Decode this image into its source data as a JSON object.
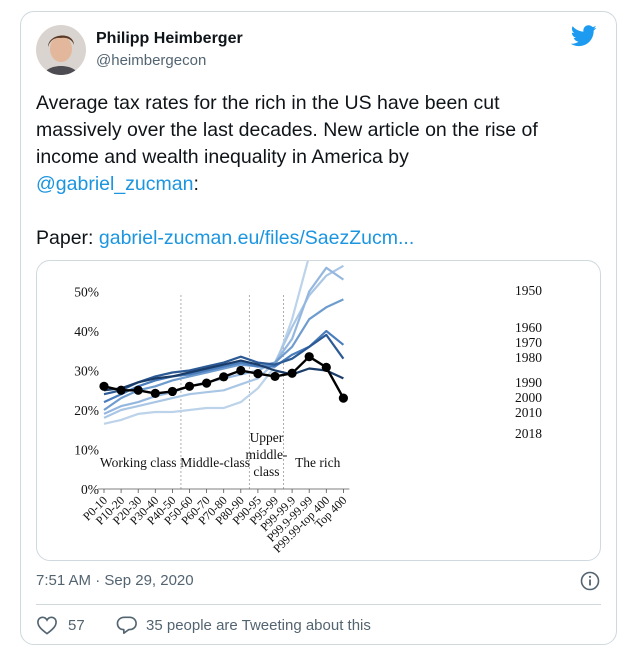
{
  "tweet": {
    "author_name": "Philipp Heimberger",
    "author_handle": "@heimbergecon",
    "text_lines": [
      "Average tax rates for the rich in the US have been cut",
      "massively over the last decades. New article on the rise of",
      "income and wealth inequality in America by"
    ],
    "mention": "@gabriel_zucman",
    "mention_suffix": ":",
    "paper_label": "Paper: ",
    "paper_link": "gabriel-zucman.eu/files/SaezZucm...",
    "timestamp": "7:51 AM · Sep 29, 2020",
    "likes": "57",
    "tweeting": "35 people are Tweeting about this"
  },
  "icons": {
    "brand": "twitter-bird-icon",
    "info": "info-icon",
    "like": "heart-icon",
    "reply": "reply-icon"
  },
  "colors": {
    "link": "#1b95e0",
    "brand": "#1d9bf0",
    "muted": "#536471"
  },
  "chart_data": {
    "type": "line",
    "categories": [
      "P0-10",
      "P10-20",
      "P20-30",
      "P30-40",
      "P40-50",
      "P50-60",
      "P60-70",
      "P70-80",
      "P80-90",
      "P90-95",
      "P95-99",
      "P99-99.9",
      "P99.9-99.99",
      "P99.99-top 400",
      "Top 400"
    ],
    "ylim": [
      0,
      70
    ],
    "yticks": [
      0,
      10,
      20,
      30,
      40,
      50,
      60,
      70
    ],
    "ytick_suffix": "%",
    "groups": [
      {
        "label": "Working class"
      },
      {
        "label": "Middle-class"
      },
      {
        "label": "Upper middle-class",
        "lines": [
          "Upper",
          "middle-",
          "class"
        ]
      },
      {
        "label": "The rich"
      }
    ],
    "series": [
      {
        "name": "1950",
        "color": "#bcd3ea",
        "values": [
          16.5,
          17.5,
          19,
          19.5,
          19.5,
          20,
          20.5,
          20.5,
          22,
          25.5,
          31,
          43,
          59,
          68,
          70
        ]
      },
      {
        "name": "1960",
        "color": "#a9c6e5",
        "values": [
          18,
          20,
          21,
          22,
          23,
          24,
          24.5,
          25,
          26.5,
          28,
          32,
          41,
          49,
          54,
          56.5
        ]
      },
      {
        "name": "1970",
        "color": "#94b7df",
        "values": [
          19,
          21,
          22,
          23.5,
          24.5,
          26,
          27,
          28,
          29,
          30,
          32,
          38,
          50,
          56,
          53
        ]
      },
      {
        "name": "1980",
        "color": "#6f9ccf",
        "values": [
          20,
          23,
          25,
          26,
          27.5,
          28.5,
          29.5,
          30.5,
          31.5,
          31,
          32,
          36,
          43,
          46,
          48
        ]
      },
      {
        "name": "1990",
        "color": "#4a7dbd",
        "values": [
          22,
          24,
          26,
          27.5,
          28.5,
          29,
          30,
          31,
          32,
          31,
          31,
          34,
          36,
          40,
          36.5
        ]
      },
      {
        "name": "2000",
        "color": "#2c5a95",
        "values": [
          24,
          25,
          27,
          28.5,
          29.5,
          30,
          31,
          32,
          33.5,
          32,
          31.5,
          33,
          36,
          39,
          33
        ]
      },
      {
        "name": "2010",
        "color": "#1a3c68",
        "values": [
          25,
          25.5,
          27,
          28,
          28.5,
          29.5,
          30.5,
          31.5,
          32.5,
          31.5,
          30,
          29,
          30.5,
          30,
          28
        ]
      },
      {
        "name": "2018",
        "color": "#000000",
        "values": [
          26,
          25,
          25,
          24.2,
          24.7,
          26,
          26.8,
          28.4,
          30,
          29.2,
          28.5,
          29.3,
          33.5,
          30.8,
          23
        ]
      }
    ]
  }
}
